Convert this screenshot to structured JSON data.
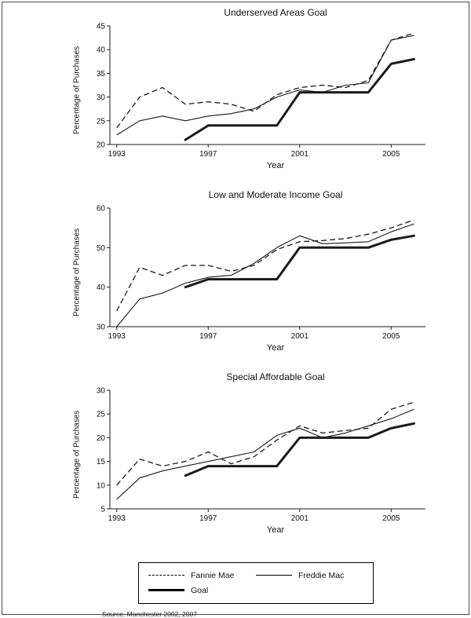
{
  "page": {
    "colors": {
      "line": "#1a1a1a",
      "frame_border": "#4a4a4a",
      "background": "#ffffff"
    }
  },
  "legend": {
    "entries": [
      {
        "label": "Fannie Mae",
        "style": "dashed"
      },
      {
        "label": "Freddie Mac",
        "style": "solid"
      },
      {
        "label": "Goal",
        "style": "thick"
      }
    ]
  },
  "source_note": "Source: Manchester 2002, 2007",
  "chart_data": [
    {
      "type": "line",
      "title": "Underserved Areas Goal",
      "xlabel": "Year",
      "ylabel": "Percentage of Purchases",
      "xlim": [
        1992.7,
        2006.5
      ],
      "ylim": [
        20,
        45
      ],
      "x_ticks": [
        1993,
        1997,
        2001,
        2005
      ],
      "y_ticks": [
        20,
        25,
        30,
        35,
        40,
        45
      ],
      "x": [
        1993,
        1994,
        1995,
        1996,
        1997,
        1998,
        1999,
        2000,
        2001,
        2002,
        2003,
        2004,
        2005,
        2006
      ],
      "series": [
        {
          "name": "Fannie Mae",
          "style": "dashed",
          "values": [
            23.5,
            30,
            32,
            28.5,
            29,
            28.5,
            27,
            30.5,
            32,
            32.5,
            32,
            33.5,
            42,
            43.5
          ]
        },
        {
          "name": "Freddie Mac",
          "style": "solid",
          "values": [
            22,
            25,
            26,
            25,
            26,
            26.5,
            27.5,
            30,
            31.5,
            31,
            32.5,
            33,
            42,
            43
          ]
        },
        {
          "name": "Goal",
          "style": "thick",
          "x": [
            1996,
            1997,
            1998,
            1999,
            2000,
            2001,
            2002,
            2003,
            2004,
            2005,
            2006
          ],
          "values": [
            21,
            24,
            24,
            24,
            24,
            31,
            31,
            31,
            31,
            37,
            38
          ]
        }
      ],
      "legend_position": "outside-bottom",
      "grid": false
    },
    {
      "type": "line",
      "title": "Low and Moderate Income Goal",
      "xlabel": "Year",
      "ylabel": "Percentage of Purchases",
      "xlim": [
        1992.7,
        2006.5
      ],
      "ylim": [
        30,
        60
      ],
      "x_ticks": [
        1993,
        1997,
        2001,
        2005
      ],
      "y_ticks": [
        30,
        40,
        50,
        60
      ],
      "x": [
        1993,
        1994,
        1995,
        1996,
        1997,
        1998,
        1999,
        2000,
        2001,
        2002,
        2003,
        2004,
        2005,
        2006
      ],
      "series": [
        {
          "name": "Fannie Mae",
          "style": "dashed",
          "values": [
            34,
            45,
            43,
            45.5,
            45.5,
            44,
            45.5,
            49.5,
            51.5,
            51.8,
            52.3,
            53.4,
            55,
            57
          ]
        },
        {
          "name": "Freddie Mac",
          "style": "solid",
          "values": [
            30,
            37,
            38.5,
            41,
            42.5,
            43,
            46,
            50,
            53,
            51,
            51.2,
            51.5,
            54,
            56
          ]
        },
        {
          "name": "Goal",
          "style": "thick",
          "x": [
            1996,
            1997,
            1998,
            1999,
            2000,
            2001,
            2002,
            2003,
            2004,
            2005,
            2006
          ],
          "values": [
            40,
            42,
            42,
            42,
            42,
            50,
            50,
            50,
            50,
            52,
            53
          ]
        }
      ],
      "legend_position": "outside-bottom",
      "grid": false
    },
    {
      "type": "line",
      "title": "Special Affordable Goal",
      "xlabel": "Year",
      "ylabel": "Percentage of Purchases",
      "xlim": [
        1992.7,
        2006.5
      ],
      "ylim": [
        5,
        30
      ],
      "x_ticks": [
        1993,
        1997,
        2001,
        2005
      ],
      "y_ticks": [
        5,
        10,
        15,
        20,
        25,
        30
      ],
      "x": [
        1993,
        1994,
        1995,
        1996,
        1997,
        1998,
        1999,
        2000,
        2001,
        2002,
        2003,
        2004,
        2005,
        2006
      ],
      "series": [
        {
          "name": "Fannie Mae",
          "style": "dashed",
          "values": [
            10,
            15.5,
            14,
            15,
            17,
            14.5,
            16,
            19.5,
            22.5,
            21,
            21.5,
            22,
            26,
            27.5
          ]
        },
        {
          "name": "Freddie Mac",
          "style": "solid",
          "values": [
            7,
            11.5,
            13,
            14,
            15,
            16,
            17,
            20.5,
            22,
            20,
            21,
            22.5,
            24,
            26
          ]
        },
        {
          "name": "Goal",
          "style": "thick",
          "x": [
            1996,
            1997,
            1998,
            1999,
            2000,
            2001,
            2002,
            2003,
            2004,
            2005,
            2006
          ],
          "values": [
            12,
            14,
            14,
            14,
            14,
            20,
            20,
            20,
            20,
            22,
            23
          ]
        }
      ],
      "legend_position": "outside-bottom",
      "grid": false
    }
  ]
}
